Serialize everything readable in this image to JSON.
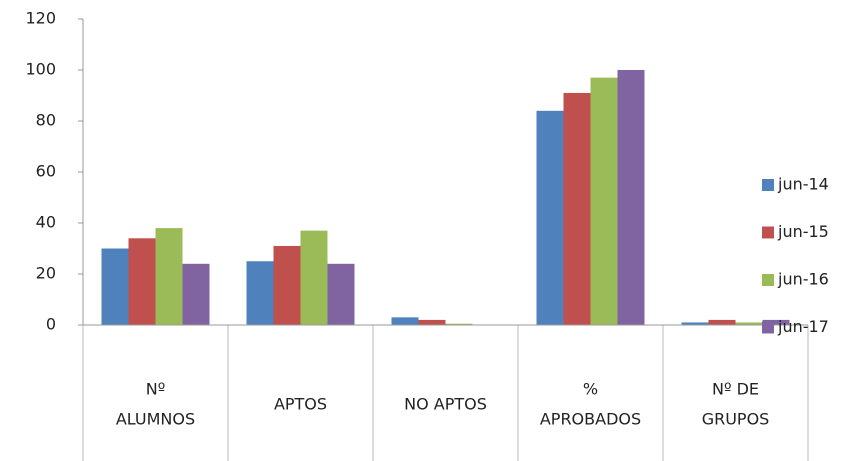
{
  "chart_data": {
    "type": "bar",
    "categories": [
      [
        "Nº",
        "ALUMNOS"
      ],
      [
        "APTOS"
      ],
      [
        "NO APTOS"
      ],
      [
        "%",
        "APROBADOS"
      ],
      [
        "Nº DE",
        "GRUPOS"
      ]
    ],
    "series": [
      {
        "name": "jun-14",
        "color": "#4f81bd",
        "values": [
          30,
          25,
          3,
          84,
          1
        ]
      },
      {
        "name": "jun-15",
        "color": "#c0504d",
        "values": [
          34,
          31,
          2,
          91,
          2
        ]
      },
      {
        "name": "jun-16",
        "color": "#9bbb59",
        "values": [
          38,
          37,
          0.5,
          97,
          1
        ]
      },
      {
        "name": "jun-17",
        "color": "#8064a2",
        "values": [
          24,
          24,
          0,
          100,
          2
        ]
      }
    ],
    "ylim": [
      0,
      120
    ],
    "yticks": [
      0,
      20,
      40,
      60,
      80,
      100,
      120
    ],
    "grid": false,
    "legend": "right"
  }
}
